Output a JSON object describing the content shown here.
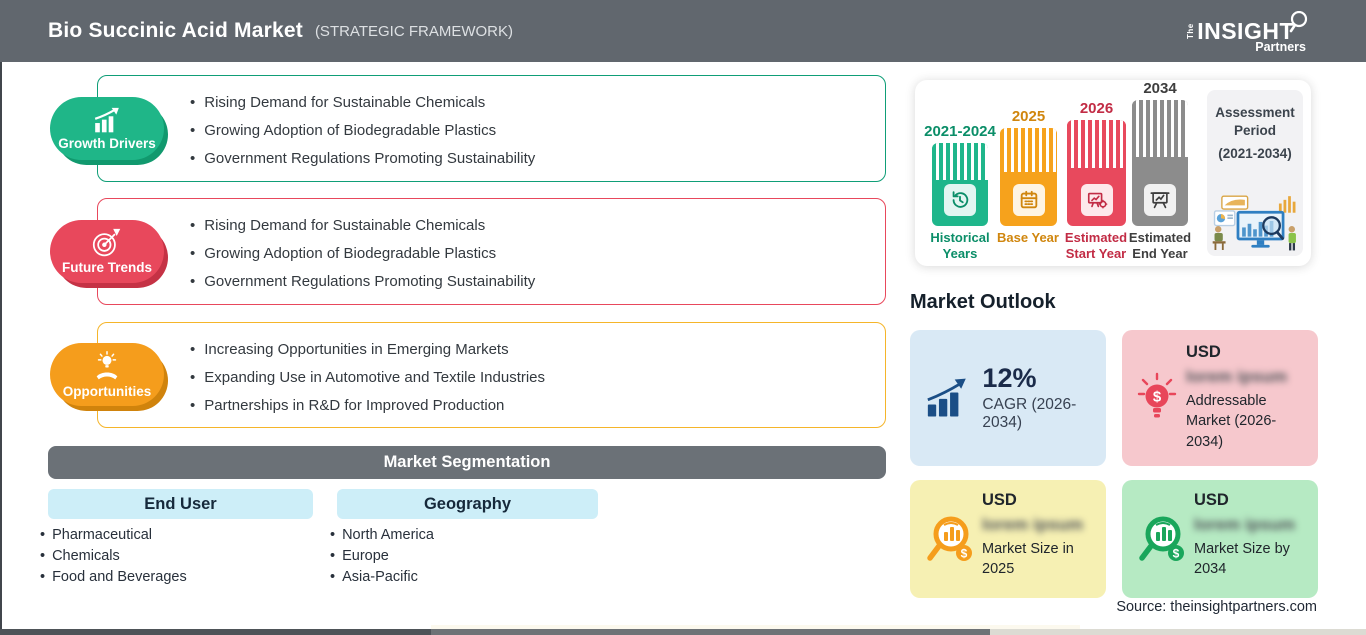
{
  "header": {
    "title": "Bio Succinic Acid Market",
    "subtitle": "(STRATEGIC FRAMEWORK)",
    "logo": {
      "the": "The",
      "insight": "INSIGHT",
      "partners": "Partners"
    }
  },
  "framework_sections": [
    {
      "label": "Growth Drivers",
      "accent_color": "#1fb688",
      "bullets": [
        "Rising Demand for Sustainable Chemicals",
        "Growing Adoption of Biodegradable Plastics",
        "Government Regulations Promoting Sustainability"
      ]
    },
    {
      "label": "Future Trends",
      "accent_color": "#e8485c",
      "bullets": [
        "Rising Demand for Sustainable Chemicals",
        "Growing Adoption of Biodegradable Plastics",
        "Government Regulations Promoting Sustainability"
      ]
    },
    {
      "label": "Opportunities",
      "accent_color": "#f59d1c",
      "bullets": [
        "Increasing Opportunities in Emerging Markets",
        "Expanding Use in Automotive and Textile Industries",
        "Partnerships in R&D for Improved Production"
      ]
    }
  ],
  "segmentation": {
    "title": "Market Segmentation",
    "groups": [
      {
        "label": "End User",
        "items": [
          "Pharmaceutical",
          "Chemicals",
          "Food and Beverages"
        ]
      },
      {
        "label": "Geography",
        "items": [
          "North America",
          "Europe",
          "Asia-Pacific"
        ]
      }
    ]
  },
  "chart_data": {
    "type": "bar",
    "title": "Assessment Period (2021-2034)",
    "categories": [
      "Historical Years",
      "Base Year",
      "Estimated Start Year",
      "Estimated End Year"
    ],
    "top_labels": [
      "2021-2024",
      "2025",
      "2026",
      "2034"
    ],
    "values": [
      83,
      98,
      106,
      126
    ],
    "values_note": "relative bar heights in px",
    "colors": [
      "#1fb68b",
      "#f6a21c",
      "#e8495d",
      "#8c8c8c"
    ],
    "assessment_panel": {
      "title": "Assessment Period",
      "range": "(2021-2034)"
    }
  },
  "market_outlook": {
    "title": "Market Outlook",
    "cards": [
      {
        "value": "12%",
        "label": "CAGR (2026-2034)",
        "bg": "#d9e9f5"
      },
      {
        "currency": "USD",
        "blurred_value": "lorem ipsum",
        "label": "Addressable Market (2026-2034)",
        "bg": "#f6c8cd"
      },
      {
        "currency": "USD",
        "blurred_value": "lorem ipsum",
        "label": "Market Size in 2025",
        "bg": "#f6f0b3"
      },
      {
        "currency": "USD",
        "blurred_value": "lorem ipsum",
        "label": "Market Size by 2034",
        "bg": "#b6eac3"
      }
    ]
  },
  "source": "Source: theinsightpartners.com"
}
